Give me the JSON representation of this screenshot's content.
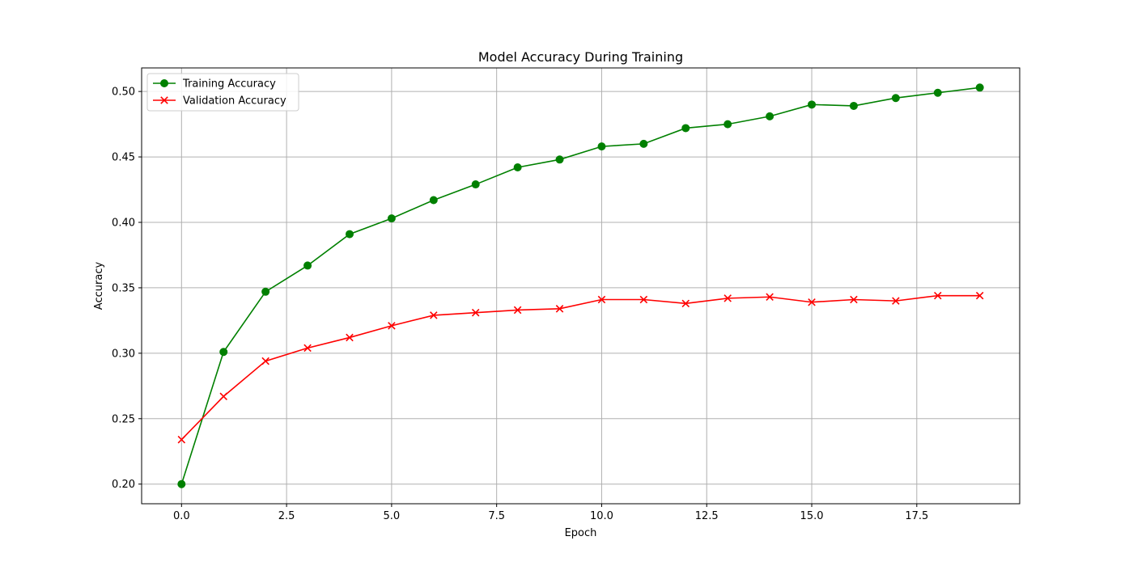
{
  "chart_data": {
    "type": "line",
    "title": "Model Accuracy During Training",
    "xlabel": "Epoch",
    "ylabel": "Accuracy",
    "xlim": [
      -0.95,
      19.95
    ],
    "ylim": [
      0.185,
      0.518
    ],
    "xticks": [
      0,
      2.5,
      5,
      7.5,
      10,
      12.5,
      15,
      17.5
    ],
    "xtick_labels": [
      "0.0",
      "2.5",
      "5.0",
      "7.5",
      "10.0",
      "12.5",
      "15.0",
      "17.5"
    ],
    "yticks": [
      0.2,
      0.25,
      0.3,
      0.35,
      0.4,
      0.45,
      0.5
    ],
    "ytick_labels": [
      "0.20",
      "0.25",
      "0.30",
      "0.35",
      "0.40",
      "0.45",
      "0.50"
    ],
    "grid": true,
    "legend_position": "top-left",
    "x": [
      0,
      1,
      2,
      3,
      4,
      5,
      6,
      7,
      8,
      9,
      10,
      11,
      12,
      13,
      14,
      15,
      16,
      17,
      18,
      19
    ],
    "series": [
      {
        "name": "Training Accuracy",
        "color": "#008000",
        "marker": "circle",
        "values": [
          0.2,
          0.301,
          0.347,
          0.367,
          0.391,
          0.403,
          0.417,
          0.429,
          0.442,
          0.448,
          0.458,
          0.46,
          0.472,
          0.475,
          0.481,
          0.49,
          0.489,
          0.495,
          0.499,
          0.503
        ]
      },
      {
        "name": "Validation Accuracy",
        "color": "#ff0000",
        "marker": "x",
        "values": [
          0.234,
          0.267,
          0.294,
          0.304,
          0.312,
          0.321,
          0.329,
          0.331,
          0.333,
          0.334,
          0.341,
          0.341,
          0.338,
          0.342,
          0.343,
          0.339,
          0.341,
          0.34,
          0.344,
          0.344
        ]
      }
    ]
  }
}
